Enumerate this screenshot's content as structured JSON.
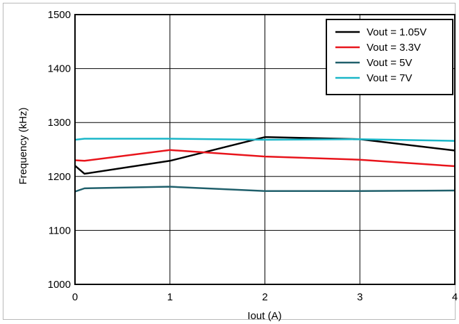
{
  "chart_data": {
    "type": "line",
    "title": "",
    "xlabel": "Iout (A)",
    "ylabel": "Frequency (kHz)",
    "xlim": [
      0,
      4
    ],
    "ylim": [
      1000,
      1500
    ],
    "xticks": [
      0,
      1,
      2,
      3,
      4
    ],
    "yticks": [
      1000,
      1100,
      1200,
      1300,
      1400,
      1500
    ],
    "x_tick_labels": [
      "0",
      "1",
      "2",
      "3",
      "4"
    ],
    "y_tick_labels": [
      "1000",
      "1100",
      "1200",
      "1300",
      "1400",
      "1500"
    ],
    "grid": true,
    "legend_position": "top-right",
    "series": [
      {
        "name": "Vout = 1.05V",
        "color": "#000000",
        "x": [
          0,
          0.1,
          1,
          2,
          3,
          4
        ],
        "y": [
          1220,
          1205,
          1229,
          1273,
          1269,
          1248
        ]
      },
      {
        "name": "Vout = 3.3V",
        "color": "#e8141b",
        "x": [
          0,
          0.1,
          1,
          2,
          3,
          4
        ],
        "y": [
          1230,
          1229,
          1249,
          1237,
          1231,
          1219
        ]
      },
      {
        "name": "Vout = 5V",
        "color": "#1f5f6b",
        "x": [
          0,
          0.1,
          1,
          2,
          3,
          4
        ],
        "y": [
          1172,
          1178,
          1181,
          1173,
          1173,
          1174
        ]
      },
      {
        "name": "Vout = 7V",
        "color": "#19b6c8",
        "x": [
          0,
          0.1,
          1,
          2,
          3,
          4
        ],
        "y": [
          1268,
          1270,
          1270,
          1268,
          1269,
          1266
        ]
      }
    ]
  }
}
